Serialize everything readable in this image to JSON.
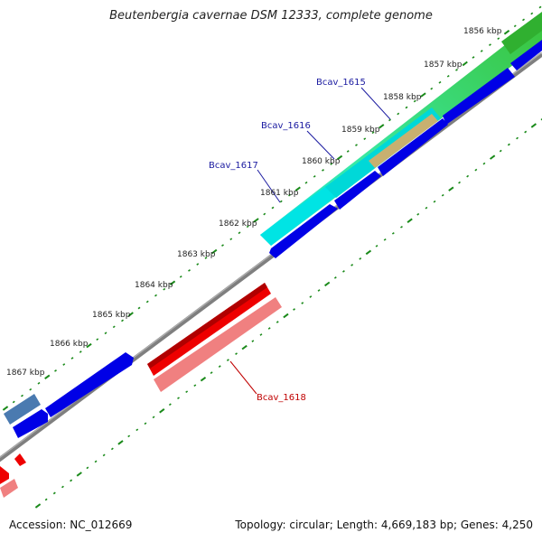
{
  "title": "Beutenbergia cavernae DSM 12333, complete genome",
  "footer": {
    "accession": "Accession: NC_012669",
    "summary": "Topology: circular; Length: 4,669,183 bp; Genes: 4,250"
  },
  "scale_labels": [
    "1856 kbp",
    "1857 kbp",
    "1858 kbp",
    "1859 kbp",
    "1860 kbp",
    "1861 kbp",
    "1862 kbp",
    "1863 kbp",
    "1864 kbp",
    "1865 kbp",
    "1866 kbp",
    "1867 kbp"
  ],
  "gene_labels": [
    {
      "text": "Bcav_1615",
      "color": "#1a1aa0"
    },
    {
      "text": "Bcav_1616",
      "color": "#1a1aa0"
    },
    {
      "text": "Bcav_1617",
      "color": "#1a1aa0"
    },
    {
      "text": "Bcav_1618",
      "color": "#c00000"
    }
  ],
  "colors": {
    "backbone": "#808080",
    "tick": "#1a8a1a",
    "cds_blue": "#0000e6",
    "cds_red": "#ee0000",
    "cds_pink": "#f08080",
    "cyan": "#00e0e0",
    "green": "#30c030",
    "tan": "#c8b070",
    "steel": "#4a7ab0"
  }
}
